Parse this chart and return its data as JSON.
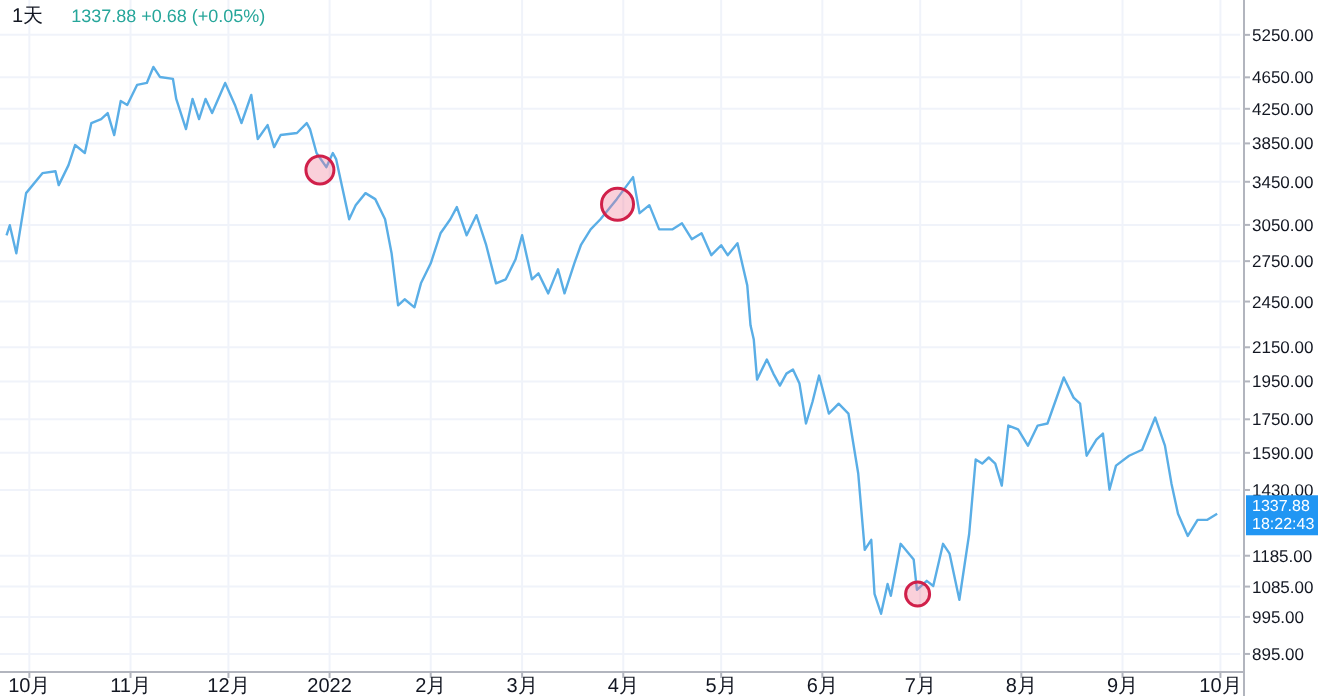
{
  "chart_data": {
    "type": "line",
    "title": "1天",
    "annotations": [
      "1337.88 +0.68 (+0.05%)",
      {
        "text": "1337.88\n18:22:43",
        "y": 1337.88
      }
    ],
    "x": [
      "2021-09-24",
      "2021-09-25",
      "2021-09-27",
      "2021-09-30",
      "2021-10-05",
      "2021-10-09",
      "2021-10-10",
      "2021-10-13",
      "2021-10-15",
      "2021-10-18",
      "2021-10-20",
      "2021-10-23",
      "2021-10-25",
      "2021-10-27",
      "2021-10-29",
      "2021-10-31",
      "2021-11-03",
      "2021-11-06",
      "2021-11-08",
      "2021-11-10",
      "2021-11-14",
      "2021-11-15",
      "2021-11-18",
      "2021-11-20",
      "2021-11-22",
      "2021-11-24",
      "2021-11-26",
      "2021-11-30",
      "2021-12-03",
      "2021-12-05",
      "2021-12-08",
      "2021-12-10",
      "2021-12-13",
      "2021-12-15",
      "2021-12-17",
      "2021-12-22",
      "2021-12-25",
      "2021-12-26",
      "2021-12-28",
      "2021-12-31",
      "2022-01-02",
      "2022-01-03",
      "2022-01-07",
      "2022-01-09",
      "2022-01-12",
      "2022-01-15",
      "2022-01-18",
      "2022-01-20",
      "2022-01-22",
      "2022-01-24",
      "2022-01-27",
      "2022-01-29",
      "2022-02-01",
      "2022-02-04",
      "2022-02-07",
      "2022-02-09",
      "2022-02-12",
      "2022-02-15",
      "2022-02-18",
      "2022-02-21",
      "2022-02-24",
      "2022-02-27",
      "2022-03-01",
      "2022-03-04",
      "2022-03-06",
      "2022-03-09",
      "2022-03-12",
      "2022-03-14",
      "2022-03-17",
      "2022-03-19",
      "2022-03-22",
      "2022-03-25",
      "2022-03-30",
      "2022-04-04",
      "2022-04-06",
      "2022-04-09",
      "2022-04-12",
      "2022-04-16",
      "2022-04-19",
      "2022-04-22",
      "2022-04-25",
      "2022-04-28",
      "2022-05-01",
      "2022-05-03",
      "2022-05-06",
      "2022-05-09",
      "2022-05-10",
      "2022-05-11",
      "2022-05-12",
      "2022-05-15",
      "2022-05-17",
      "2022-05-19",
      "2022-05-21",
      "2022-05-23",
      "2022-05-25",
      "2022-05-27",
      "2022-05-29",
      "2022-05-31",
      "2022-06-03",
      "2022-06-06",
      "2022-06-09",
      "2022-06-12",
      "2022-06-14",
      "2022-06-16",
      "2022-06-17",
      "2022-06-19",
      "2022-06-21",
      "2022-06-22",
      "2022-06-25",
      "2022-06-29",
      "2022-06-30",
      "2022-07-03",
      "2022-07-05",
      "2022-07-08",
      "2022-07-10",
      "2022-07-13",
      "2022-07-16",
      "2022-07-18",
      "2022-07-20",
      "2022-07-22",
      "2022-07-24",
      "2022-07-26",
      "2022-07-28",
      "2022-07-31",
      "2022-08-03",
      "2022-08-06",
      "2022-08-09",
      "2022-08-14",
      "2022-08-17",
      "2022-08-19",
      "2022-08-21",
      "2022-08-24",
      "2022-08-26",
      "2022-08-28",
      "2022-08-30",
      "2022-09-03",
      "2022-09-07",
      "2022-09-11",
      "2022-09-14",
      "2022-09-16",
      "2022-09-18",
      "2022-09-21",
      "2022-09-24",
      "2022-09-27",
      "2022-09-30"
    ],
    "series": [
      {
        "color": "#5aaee6",
        "values": [
          2961,
          3047,
          2813,
          3340,
          3536,
          3556,
          3417,
          3618,
          3832,
          3746,
          4080,
          4127,
          4199,
          3943,
          4347,
          4297,
          4550,
          4576,
          4790,
          4655,
          4629,
          4371,
          4011,
          4371,
          4127,
          4371,
          4199,
          4576,
          4297,
          4080,
          4421,
          3898,
          4057,
          3810,
          3943,
          3966,
          4080,
          4011,
          3746,
          3597,
          3746,
          3681,
          3100,
          3227,
          3340,
          3283,
          3100,
          2813,
          2424,
          2466,
          2410,
          2581,
          2733,
          2978,
          3100,
          3209,
          2961,
          3136,
          2878,
          2581,
          2611,
          2765,
          2961,
          2611,
          2656,
          2508,
          2687,
          2508,
          2733,
          2878,
          3011,
          3100,
          3283,
          3496,
          3154,
          3227,
          3011,
          3011,
          3064,
          2928,
          2978,
          2797,
          2878,
          2797,
          2894,
          2566,
          2289,
          2198,
          1960,
          2076,
          1994,
          1927,
          1994,
          2018,
          1938,
          1729,
          1840,
          1983,
          1779,
          1830,
          1779,
          1499,
          1205,
          1240,
          1063,
          1004,
          1093,
          1057,
          1226,
          1172,
          1075,
          1103,
          1087,
          1226,
          1192,
          1045,
          1261,
          1560,
          1542,
          1569,
          1542,
          1448,
          1719,
          1700,
          1623,
          1719,
          1729,
          1972,
          1862,
          1830,
          1577,
          1651,
          1680,
          1431,
          1533,
          1577,
          1604,
          1759,
          1623,
          1456,
          1336,
          1254,
          1313,
          1313,
          1336
        ]
      }
    ],
    "log": true,
    "xlim": [
      "2021-09-22",
      "2022-10-07"
    ],
    "xticks": [
      {
        "value": "2021-10-01",
        "label": "10月"
      },
      {
        "value": "2021-11-01",
        "label": "11月"
      },
      {
        "value": "2021-12-01",
        "label": "12月"
      },
      {
        "value": "2022-01-01",
        "label": "2022"
      },
      {
        "value": "2022-02-01",
        "label": "2月"
      },
      {
        "value": "2022-03-01",
        "label": "3月"
      },
      {
        "value": "2022-04-01",
        "label": "4月"
      },
      {
        "value": "2022-05-01",
        "label": "5月"
      },
      {
        "value": "2022-06-01",
        "label": "6月"
      },
      {
        "value": "2022-07-01",
        "label": "7月"
      },
      {
        "value": "2022-08-01",
        "label": "8月"
      },
      {
        "value": "2022-09-01",
        "label": "9月"
      },
      {
        "value": "2022-10-01",
        "label": "10月"
      }
    ],
    "ylim": [
      850,
      5800
    ],
    "yticks": [
      {
        "value": 895,
        "label": "895.00"
      },
      {
        "value": 995,
        "label": "995.00"
      },
      {
        "value": 1085,
        "label": "1085.00"
      },
      {
        "value": 1185,
        "label": "1185.00"
      },
      {
        "value": 1430,
        "label": "1430.00"
      },
      {
        "value": 1590,
        "label": "1590.00"
      },
      {
        "value": 1750,
        "label": "1750.00"
      },
      {
        "value": 1950,
        "label": "1950.00"
      },
      {
        "value": 2150,
        "label": "2150.00"
      },
      {
        "value": 2450,
        "label": "2450.00"
      },
      {
        "value": 2750,
        "label": "2750.00"
      },
      {
        "value": 3050,
        "label": "3050.00"
      },
      {
        "value": 3450,
        "label": "3450.00"
      },
      {
        "value": 3850,
        "label": "3850.00"
      },
      {
        "value": 4250,
        "label": "4250.00"
      },
      {
        "value": 4650,
        "label": "4650.00"
      },
      {
        "value": 5250,
        "label": "5250.00"
      }
    ],
    "grid": true
  }
}
